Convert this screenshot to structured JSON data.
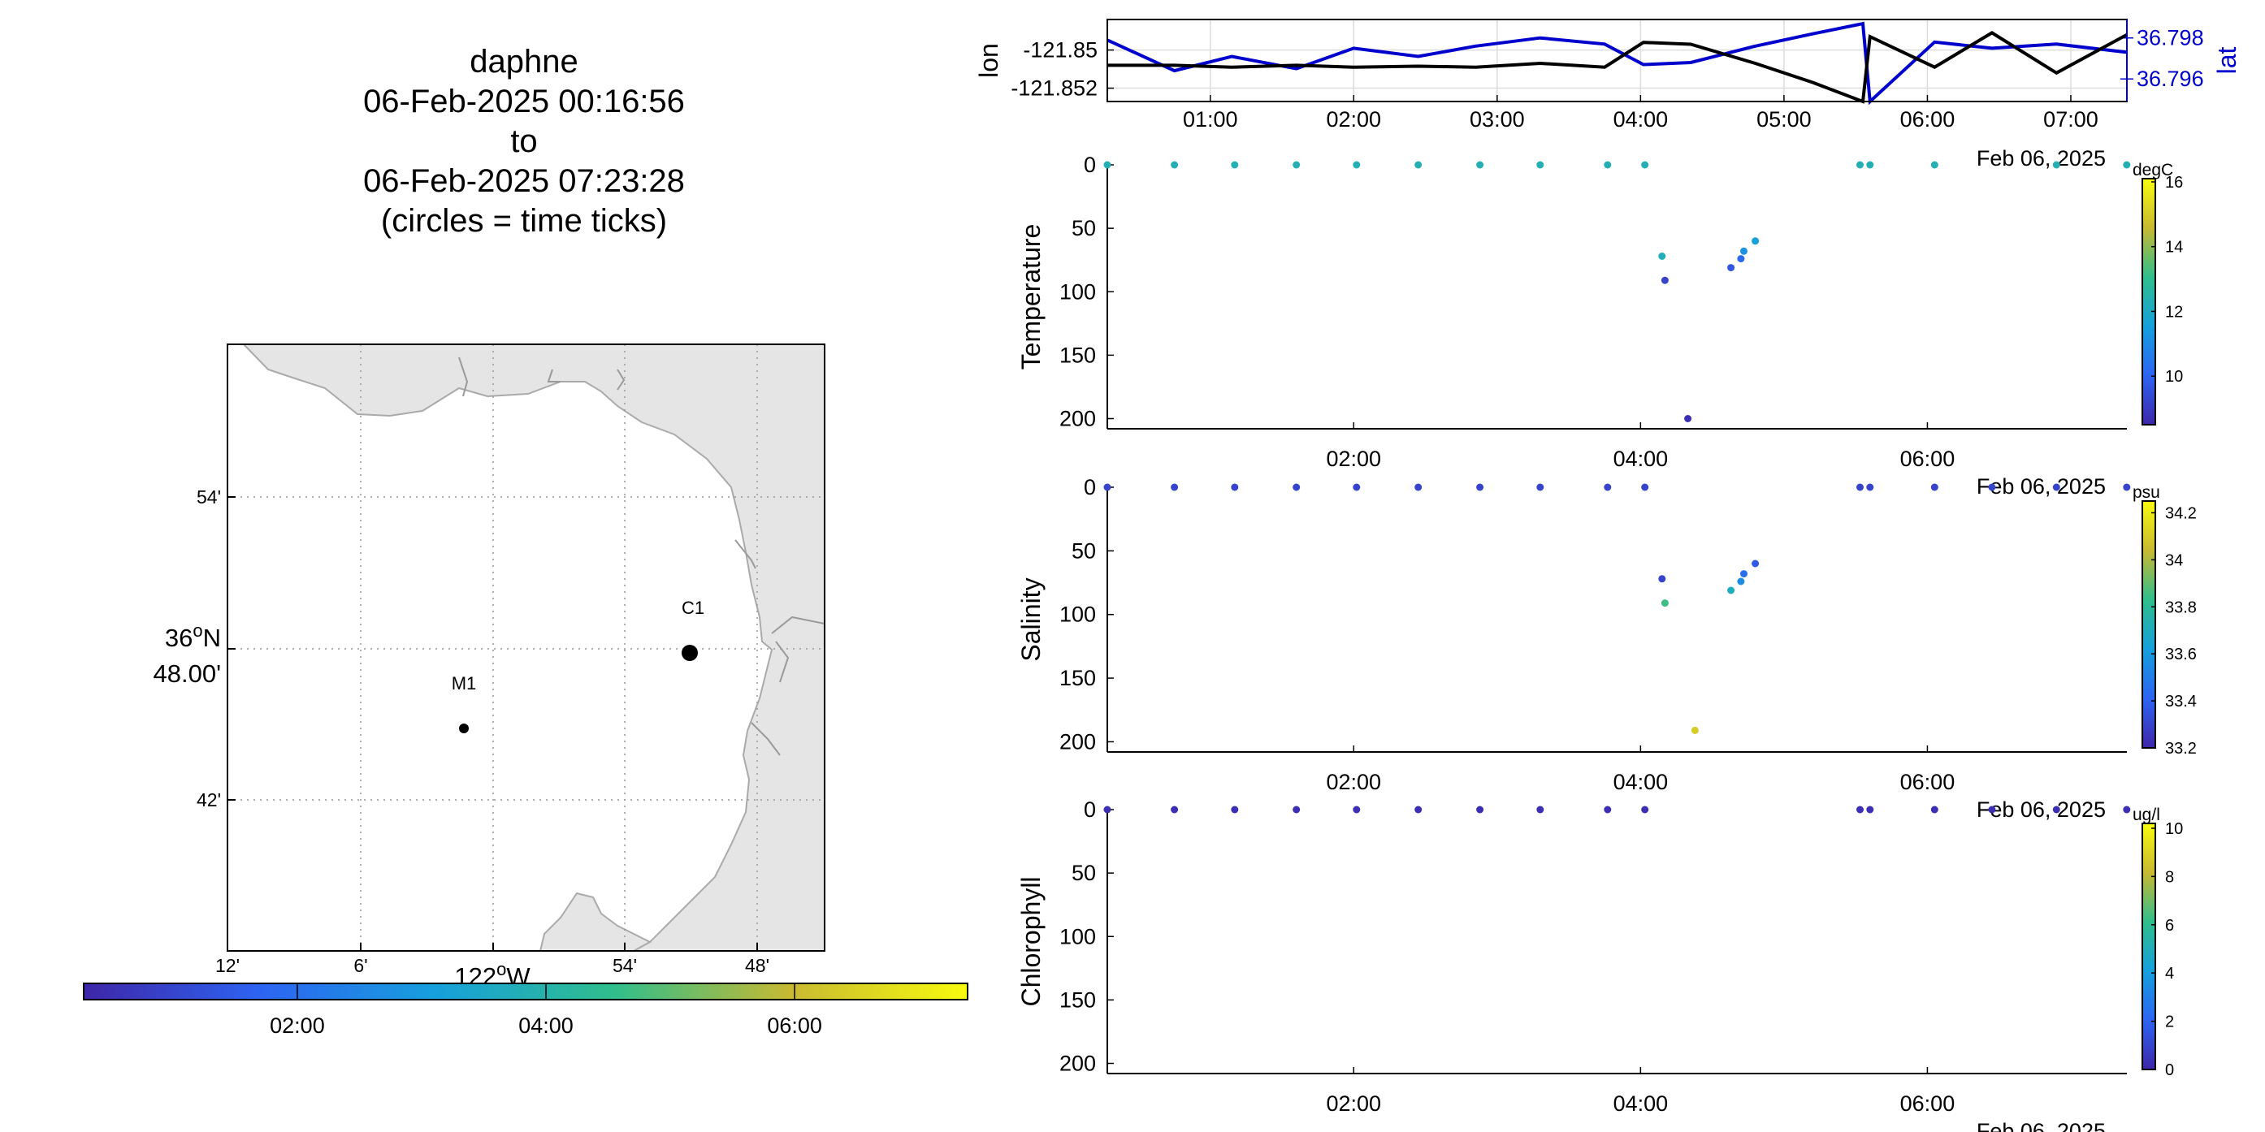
{
  "title_lines": [
    "daphne",
    "06-Feb-2025 00:16:56",
    "to",
    "06-Feb-2025 07:23:28",
    "(circles = time ticks)"
  ],
  "map": {
    "lat_ticks": [
      "54'",
      "42'"
    ],
    "lat_center_deg": "36",
    "lat_center_min": "48.00'",
    "lon_ticks": [
      "12'",
      "6'",
      "54'",
      "48'"
    ],
    "lon_center_deg": "122",
    "lon_hemisphere": "W",
    "lat_hemisphere": "N",
    "deg_symbol": "o",
    "station_labels": [
      "C1",
      "M1"
    ],
    "land_color": "#e5e5e5",
    "coast_color": "#aaaaaa"
  },
  "time_colorbar": {
    "ticks": [
      "02:00",
      "04:00",
      "06:00"
    ],
    "range_hours": [
      0.282,
      7.391
    ],
    "tick_hours": [
      2,
      4,
      6
    ]
  },
  "chart_data": [
    {
      "type": "line",
      "ylabel": "lon",
      "ylabel_right": "lat",
      "x_ticks": [
        "01:00",
        "02:00",
        "03:00",
        "04:00",
        "05:00",
        "06:00",
        "07:00"
      ],
      "x_tick_hours": [
        1,
        2,
        3,
        4,
        5,
        6,
        7
      ],
      "date_label": "Feb 06, 2025",
      "xlim_hours": [
        0.282,
        7.391
      ],
      "y_left_ticks": [
        "-121.85",
        "-121.852"
      ],
      "y_left_tick_values": [
        -121.85,
        -121.852
      ],
      "y_left_lim": [
        -121.8527,
        -121.8484
      ],
      "y_right_ticks": [
        "36.798",
        "36.796"
      ],
      "y_right_tick_values": [
        36.798,
        36.796
      ],
      "y_right_lim": [
        36.7949,
        36.7989
      ],
      "series": [
        {
          "name": "lon",
          "color": "#000000",
          "x": [
            0.282,
            0.75,
            1.15,
            1.6,
            2.0,
            2.45,
            2.85,
            3.3,
            3.75,
            4.02,
            4.35,
            4.8,
            5.2,
            5.55,
            5.6,
            6.05,
            6.45,
            6.9,
            7.391
          ],
          "y": [
            -121.8508,
            -121.8508,
            -121.8509,
            -121.8508,
            -121.8509,
            -121.85085,
            -121.8509,
            -121.8507,
            -121.8509,
            -121.8496,
            -121.8497,
            -121.8507,
            -121.8517,
            -121.8527,
            -121.8493,
            -121.8509,
            -121.8491,
            -121.8512,
            -121.8492
          ]
        },
        {
          "name": "lat",
          "color": "#0000cc",
          "x": [
            0.282,
            0.75,
            1.15,
            1.6,
            2.0,
            2.45,
            2.85,
            3.3,
            3.75,
            4.02,
            4.35,
            4.8,
            5.2,
            5.55,
            5.6,
            6.05,
            6.45,
            6.9,
            7.391
          ],
          "y": [
            36.7979,
            36.7964,
            36.7971,
            36.7965,
            36.7975,
            36.7971,
            36.7976,
            36.798,
            36.7977,
            36.7967,
            36.7968,
            36.7976,
            36.7982,
            36.7987,
            36.7949,
            36.7978,
            36.7975,
            36.7977,
            36.7973
          ]
        }
      ]
    },
    {
      "type": "scatter",
      "ylabel": "Temperature",
      "units": "degC",
      "x_ticks": [
        "02:00",
        "04:00",
        "06:00"
      ],
      "x_tick_hours": [
        2,
        4,
        6
      ],
      "date_label": "Feb 06, 2025",
      "xlim_hours": [
        0.282,
        7.391
      ],
      "y_ticks": [
        "0",
        "50",
        "100",
        "150",
        "200"
      ],
      "y_tick_values": [
        0,
        50,
        100,
        150,
        200
      ],
      "ylim": [
        0,
        208
      ],
      "y_reversed": true,
      "colorbar_ticks": [
        "16",
        "14",
        "12",
        "10"
      ],
      "colorbar_tick_values": [
        16,
        14,
        12,
        10
      ],
      "clim": [
        8.5,
        16.1
      ],
      "x": [
        0.282,
        0.75,
        1.17,
        1.6,
        2.02,
        2.45,
        2.88,
        3.3,
        3.77,
        4.03,
        5.53,
        5.6,
        6.05,
        6.9,
        7.39,
        4.15,
        4.17,
        4.33,
        4.63,
        4.7,
        4.72,
        4.8
      ],
      "y": [
        0,
        0,
        0,
        0,
        0,
        0,
        0,
        0,
        0,
        0,
        0,
        0,
        0,
        0,
        0,
        72,
        91,
        200,
        81,
        74,
        68,
        60
      ],
      "values": [
        12.3,
        12.3,
        12.3,
        12.3,
        12.3,
        12.3,
        12.3,
        12.3,
        12.3,
        12.3,
        12.3,
        12.3,
        12.3,
        12.3,
        12.3,
        12.2,
        9.2,
        8.7,
        9.7,
        10.2,
        11.2,
        11.6
      ]
    },
    {
      "type": "scatter",
      "ylabel": "Salinity",
      "units": "psu",
      "x_ticks": [
        "02:00",
        "04:00",
        "06:00"
      ],
      "x_tick_hours": [
        2,
        4,
        6
      ],
      "date_label": "Feb 06, 2025",
      "xlim_hours": [
        0.282,
        7.391
      ],
      "y_ticks": [
        "0",
        "50",
        "100",
        "150",
        "200"
      ],
      "y_tick_values": [
        0,
        50,
        100,
        150,
        200
      ],
      "ylim": [
        0,
        208
      ],
      "y_reversed": true,
      "colorbar_ticks": [
        "34.2",
        "34",
        "33.8",
        "33.6",
        "33.4",
        "33.2"
      ],
      "colorbar_tick_values": [
        34.2,
        34,
        33.8,
        33.6,
        33.4,
        33.2
      ],
      "clim": [
        33.2,
        34.25
      ],
      "x": [
        0.282,
        0.75,
        1.17,
        1.6,
        2.02,
        2.45,
        2.88,
        3.3,
        3.77,
        4.03,
        5.53,
        5.6,
        6.05,
        6.45,
        6.9,
        7.39,
        4.15,
        4.17,
        4.38,
        4.63,
        4.7,
        4.72,
        4.8
      ],
      "y": [
        0,
        0,
        0,
        0,
        0,
        0,
        0,
        0,
        0,
        0,
        0,
        0,
        0,
        0,
        0,
        0,
        72,
        91,
        191,
        81,
        74,
        68,
        60
      ],
      "values": [
        33.3,
        33.3,
        33.3,
        33.3,
        33.3,
        33.3,
        33.3,
        33.3,
        33.3,
        33.3,
        33.3,
        33.3,
        33.3,
        33.3,
        33.3,
        33.3,
        33.3,
        33.85,
        34.1,
        33.7,
        33.55,
        33.45,
        33.38
      ]
    },
    {
      "type": "scatter",
      "ylabel": "Chlorophyll",
      "units": "ug/l",
      "x_ticks": [
        "02:00",
        "04:00",
        "06:00"
      ],
      "x_tick_hours": [
        2,
        4,
        6
      ],
      "date_label": "Feb 06, 2025",
      "xlim_hours": [
        0.282,
        7.391
      ],
      "y_ticks": [
        "0",
        "50",
        "100",
        "150",
        "200"
      ],
      "y_tick_values": [
        0,
        50,
        100,
        150,
        200
      ],
      "ylim": [
        0,
        208
      ],
      "y_reversed": true,
      "colorbar_ticks": [
        "10",
        "8",
        "6",
        "4",
        "2",
        "0"
      ],
      "colorbar_tick_values": [
        10,
        8,
        6,
        4,
        2,
        0
      ],
      "clim": [
        0,
        10.2
      ],
      "x": [
        0.282,
        0.75,
        1.17,
        1.6,
        2.02,
        2.45,
        2.88,
        3.3,
        3.77,
        4.03,
        5.53,
        5.6,
        6.05,
        6.45,
        6.9,
        7.39
      ],
      "y": [
        0,
        0,
        0,
        0,
        0,
        0,
        0,
        0,
        0,
        0,
        0,
        0,
        0,
        0,
        0,
        0
      ],
      "values": [
        0.3,
        0.3,
        0.3,
        0.3,
        0.3,
        0.3,
        0.3,
        0.3,
        0.3,
        0.3,
        0.3,
        0.3,
        0.3,
        0.3,
        0.3,
        0.3
      ]
    }
  ]
}
